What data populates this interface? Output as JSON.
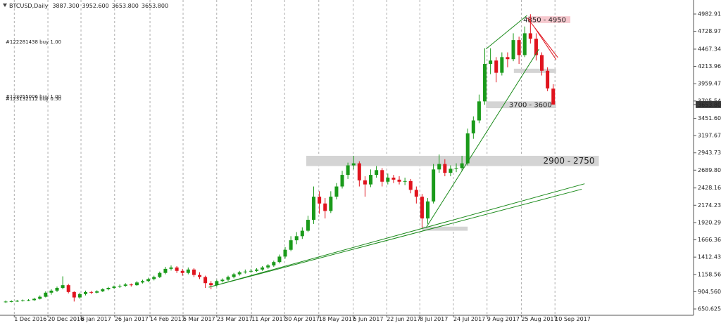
{
  "chart_data": {
    "type": "candlestick",
    "title": "BTCUSD,Daily",
    "header_values": [
      "3887.300",
      "3952.600",
      "3653.800",
      "3653.800"
    ],
    "up_color": "#1a9a1a",
    "down_color": "#e0141e",
    "xlim": [
      -1,
      120.6
    ],
    "ylim": [
      558,
      5189
    ],
    "xticks": [
      {
        "value": 1.5,
        "label": "1 Dec 2016"
      },
      {
        "value": 7.4,
        "label": "20 Dec 2016"
      },
      {
        "value": 13.2,
        "label": "8 Jan 2017"
      },
      {
        "value": 19.1,
        "label": "26 Jan 2017"
      },
      {
        "value": 25.3,
        "label": "14 Feb 2017"
      },
      {
        "value": 31.1,
        "label": "5 Mar 2017"
      },
      {
        "value": 37,
        "label": "23 Mar 2017"
      },
      {
        "value": 43.1,
        "label": "11 Apr 2017"
      },
      {
        "value": 48.9,
        "label": "30 Apr 2017"
      },
      {
        "value": 54.9,
        "label": "18 May 2017"
      },
      {
        "value": 60.9,
        "label": "6 Jun 2017"
      },
      {
        "value": 66.8,
        "label": "22 Jun 2017"
      },
      {
        "value": 72.6,
        "label": "8 Jul 2017"
      },
      {
        "value": 78.5,
        "label": "24 Jul 2017"
      },
      {
        "value": 84.4,
        "label": "9 Aug 2017"
      },
      {
        "value": 90.4,
        "label": "25 Aug 2017"
      },
      {
        "value": 96.3,
        "label": "10 Sep 2017"
      }
    ],
    "yticks": [
      {
        "value": 4982.91,
        "label": "4982.910"
      },
      {
        "value": 4728.975,
        "label": "4728.975"
      },
      {
        "value": 4467.34,
        "label": "4467.340"
      },
      {
        "value": 4213.965,
        "label": "4213.965"
      },
      {
        "value": 3959.475,
        "label": "3959.475"
      },
      {
        "value": 3705.54,
        "label": "3705.540"
      },
      {
        "value": 3451.605,
        "label": "3451.605"
      },
      {
        "value": 3197.67,
        "label": "3197.670"
      },
      {
        "value": 2943.735,
        "label": "2943.735"
      },
      {
        "value": 2689.8,
        "label": "2689.800"
      },
      {
        "value": 2428.165,
        "label": "2428.165"
      },
      {
        "value": 2174.23,
        "label": "2174.230"
      },
      {
        "value": 1920.295,
        "label": "1920.295"
      },
      {
        "value": 1666.365,
        "label": "1666.365"
      },
      {
        "value": 1412.43,
        "label": "1412.430"
      },
      {
        "value": 1158.56,
        "label": "1158.560"
      },
      {
        "value": 904.56,
        "label": "904.560"
      },
      {
        "value": 650.625,
        "label": "650.625"
      }
    ],
    "grid": true,
    "ohlc": [
      [
        750,
        775,
        740,
        760
      ],
      [
        760,
        778,
        748,
        765
      ],
      [
        765,
        785,
        755,
        770
      ],
      [
        770,
        790,
        760,
        775
      ],
      [
        775,
        795,
        765,
        780
      ],
      [
        780,
        815,
        770,
        800
      ],
      [
        800,
        850,
        790,
        830
      ],
      [
        830,
        910,
        820,
        890
      ],
      [
        890,
        940,
        860,
        920
      ],
      [
        920,
        980,
        900,
        960
      ],
      [
        960,
        1130,
        940,
        1000
      ],
      [
        1000,
        1020,
        880,
        900
      ],
      [
        900,
        910,
        760,
        820
      ],
      [
        820,
        890,
        800,
        870
      ],
      [
        870,
        920,
        850,
        900
      ],
      [
        900,
        915,
        870,
        890
      ],
      [
        890,
        925,
        880,
        910
      ],
      [
        910,
        955,
        900,
        940
      ],
      [
        940,
        975,
        925,
        960
      ],
      [
        960,
        995,
        945,
        980
      ],
      [
        980,
        1010,
        960,
        990
      ],
      [
        990,
        1030,
        975,
        1010
      ],
      [
        1010,
        1025,
        980,
        1000
      ],
      [
        1000,
        1060,
        990,
        1040
      ],
      [
        1040,
        1080,
        1025,
        1060
      ],
      [
        1060,
        1110,
        1045,
        1090
      ],
      [
        1090,
        1140,
        1070,
        1120
      ],
      [
        1120,
        1200,
        1105,
        1180
      ],
      [
        1180,
        1270,
        1160,
        1240
      ],
      [
        1240,
        1290,
        1215,
        1260
      ],
      [
        1260,
        1280,
        1180,
        1210
      ],
      [
        1210,
        1240,
        1140,
        1180
      ],
      [
        1180,
        1260,
        1160,
        1230
      ],
      [
        1230,
        1250,
        1120,
        1150
      ],
      [
        1150,
        1190,
        1090,
        1120
      ],
      [
        1120,
        1140,
        960,
        1030
      ],
      [
        1030,
        1060,
        940,
        1000
      ],
      [
        1000,
        1080,
        980,
        1060
      ],
      [
        1060,
        1100,
        1040,
        1080
      ],
      [
        1080,
        1140,
        1060,
        1120
      ],
      [
        1120,
        1180,
        1100,
        1160
      ],
      [
        1160,
        1210,
        1140,
        1190
      ],
      [
        1190,
        1230,
        1170,
        1200
      ],
      [
        1200,
        1240,
        1180,
        1210
      ],
      [
        1210,
        1250,
        1195,
        1230
      ],
      [
        1230,
        1280,
        1210,
        1260
      ],
      [
        1260,
        1310,
        1240,
        1290
      ],
      [
        1290,
        1360,
        1270,
        1340
      ],
      [
        1340,
        1450,
        1320,
        1420
      ],
      [
        1420,
        1560,
        1390,
        1520
      ],
      [
        1520,
        1720,
        1500,
        1660
      ],
      [
        1660,
        1780,
        1600,
        1720
      ],
      [
        1720,
        1850,
        1680,
        1800
      ],
      [
        1800,
        2020,
        1780,
        1960
      ],
      [
        1960,
        2450,
        1900,
        2300
      ],
      [
        2300,
        2380,
        2050,
        2200
      ],
      [
        2200,
        2280,
        1980,
        2090
      ],
      [
        2090,
        2380,
        2060,
        2300
      ],
      [
        2300,
        2500,
        2260,
        2450
      ],
      [
        2450,
        2680,
        2420,
        2620
      ],
      [
        2620,
        2800,
        2560,
        2760
      ],
      [
        2760,
        2900,
        2700,
        2790
      ],
      [
        2790,
        2820,
        2450,
        2540
      ],
      [
        2540,
        2600,
        2300,
        2480
      ],
      [
        2480,
        2700,
        2440,
        2620
      ],
      [
        2620,
        2750,
        2580,
        2690
      ],
      [
        2690,
        2720,
        2450,
        2520
      ],
      [
        2520,
        2640,
        2480,
        2580
      ],
      [
        2580,
        2620,
        2500,
        2550
      ],
      [
        2550,
        2600,
        2480,
        2520
      ],
      [
        2520,
        2580,
        2470,
        2530
      ],
      [
        2530,
        2560,
        2350,
        2400
      ],
      [
        2400,
        2450,
        2200,
        2300
      ],
      [
        2300,
        2340,
        1840,
        1980
      ],
      [
        1980,
        2280,
        1900,
        2230
      ],
      [
        2230,
        2780,
        2200,
        2700
      ],
      [
        2700,
        2920,
        2650,
        2780
      ],
      [
        2780,
        2850,
        2600,
        2650
      ],
      [
        2650,
        2760,
        2600,
        2710
      ],
      [
        2710,
        2790,
        2660,
        2720
      ],
      [
        2720,
        2900,
        2680,
        2790
      ],
      [
        2790,
        3300,
        2760,
        3230
      ],
      [
        3230,
        3480,
        3150,
        3420
      ],
      [
        3420,
        3800,
        3380,
        3700
      ],
      [
        3700,
        4480,
        3650,
        4250
      ],
      [
        4250,
        4480,
        4100,
        4300
      ],
      [
        4300,
        4350,
        3980,
        4120
      ],
      [
        4120,
        4420,
        4080,
        4350
      ],
      [
        4350,
        4420,
        4200,
        4320
      ],
      [
        4320,
        4700,
        4290,
        4600
      ],
      [
        4600,
        4650,
        4250,
        4380
      ],
      [
        4380,
        4800,
        4350,
        4700
      ],
      [
        4700,
        4980,
        4550,
        4620
      ],
      [
        4620,
        4700,
        4300,
        4380
      ],
      [
        4380,
        4420,
        4080,
        4150
      ],
      [
        4150,
        4200,
        3850,
        3890
      ],
      [
        3887.3,
        3952.6,
        3653.8,
        3653.8
      ]
    ],
    "zones": [
      {
        "low": 2750,
        "high": 2900,
        "x": [
          52.7,
          104
        ],
        "label": "2900 - 2750",
        "color": "#d4d4d4",
        "text_color": "#1f5f1f"
      },
      {
        "low": 3600,
        "high": 3700,
        "x": [
          84.2,
          96.5
        ],
        "label": "3700 - 3600",
        "color": "#d4d4d4",
        "text_color": "#333333"
      },
      {
        "low": 4850,
        "high": 4950,
        "x": [
          91.6,
          99
        ],
        "label": "4850 - 4950",
        "color": "#f6c9cf",
        "text_color": "#e0141e"
      },
      {
        "low": 1800,
        "high": 1860,
        "x": [
          73,
          81
        ],
        "color": "#d4d4d4"
      },
      {
        "low": 4118,
        "high": 4180,
        "x": [
          89.1,
          96.5
        ],
        "color": "#d4d4d4"
      }
    ],
    "trendlines": [
      {
        "x": [
          35.6,
          101.5
        ],
        "y": [
          970,
          2490
        ],
        "color": "#1a8a1a"
      },
      {
        "x": [
          35.6,
          101
        ],
        "y": [
          970,
          2410
        ],
        "color": "#1a8a1a"
      },
      {
        "x": [
          73.7,
          93.5
        ],
        "y": [
          1845,
          4468
        ],
        "color": "#1a8a1a"
      },
      {
        "x": [
          84.2,
          91.4
        ],
        "y": [
          4468,
          4962
        ],
        "color": "#1a8a1a"
      },
      {
        "x": [
          91.4,
          96.8
        ],
        "y": [
          4930,
          4345
        ],
        "color": "#e0141e"
      },
      {
        "x": [
          92.8,
          96.5
        ],
        "y": [
          4777,
          4314
        ],
        "color": "#e0141e"
      }
    ],
    "orders": [
      "#122281438 buy 1.00",
      "#123055006 buy 1.00",
      "#123132112 buy 0.50"
    ]
  }
}
